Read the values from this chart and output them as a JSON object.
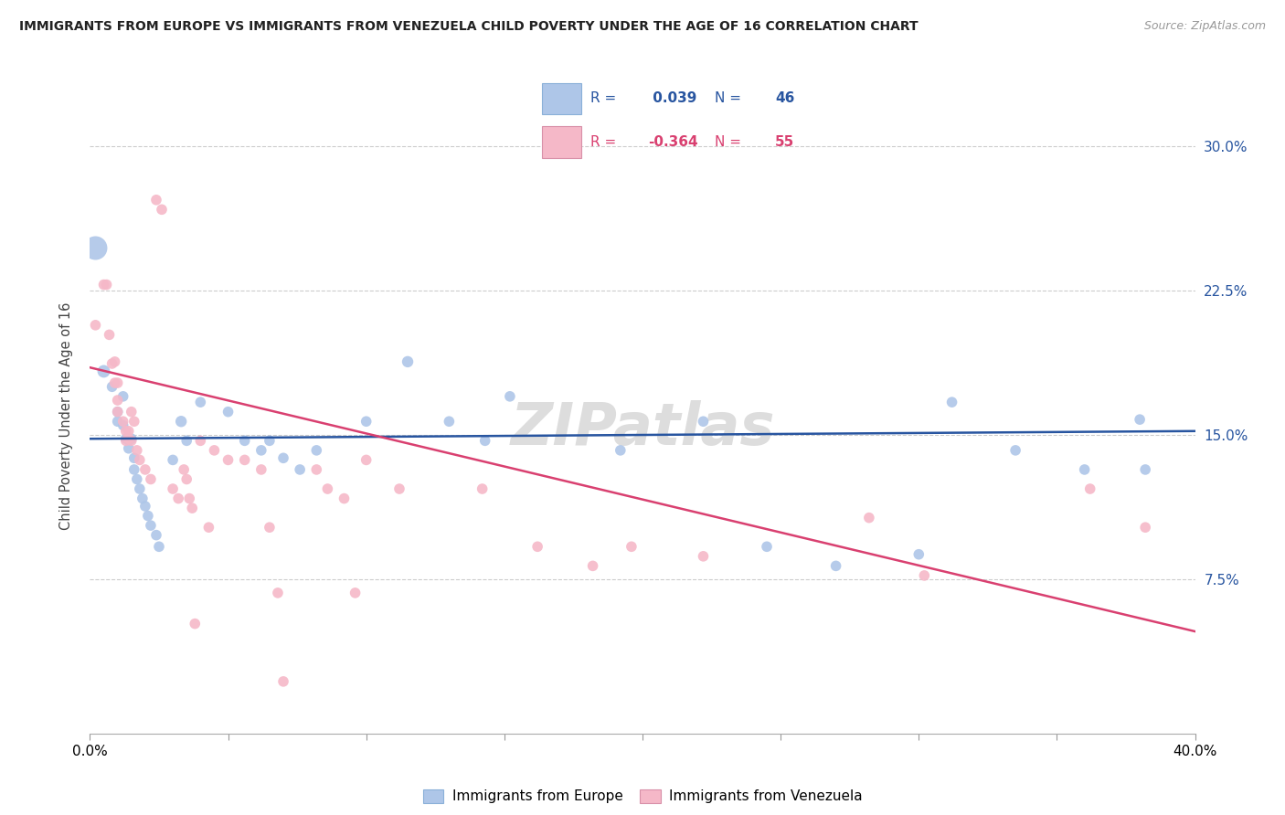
{
  "title": "IMMIGRANTS FROM EUROPE VS IMMIGRANTS FROM VENEZUELA CHILD POVERTY UNDER THE AGE OF 16 CORRELATION CHART",
  "source": "Source: ZipAtlas.com",
  "ylabel": "Child Poverty Under the Age of 16",
  "ytick_vals": [
    0.075,
    0.15,
    0.225,
    0.3
  ],
  "ytick_labels": [
    "7.5%",
    "15.0%",
    "22.5%",
    "30.0%"
  ],
  "xmin": 0.0,
  "xmax": 0.4,
  "ymin": -0.005,
  "ymax": 0.325,
  "europe_R": 0.039,
  "europe_N": 46,
  "venezuela_R": -0.364,
  "venezuela_N": 55,
  "europe_color": "#aec6e8",
  "venezuela_color": "#f5b8c8",
  "europe_line_color": "#2855a0",
  "venezuela_line_color": "#d94070",
  "watermark": "ZIPatlas",
  "europe_line_y0": 0.148,
  "europe_line_y1": 0.152,
  "venezuela_line_y0": 0.185,
  "venezuela_line_y1": 0.048,
  "europe_points": [
    [
      0.002,
      0.247,
      350
    ],
    [
      0.005,
      0.183,
      100
    ],
    [
      0.008,
      0.175,
      70
    ],
    [
      0.01,
      0.162,
      70
    ],
    [
      0.01,
      0.157,
      70
    ],
    [
      0.012,
      0.17,
      70
    ],
    [
      0.012,
      0.155,
      70
    ],
    [
      0.013,
      0.148,
      70
    ],
    [
      0.014,
      0.143,
      70
    ],
    [
      0.015,
      0.148,
      70
    ],
    [
      0.016,
      0.138,
      70
    ],
    [
      0.016,
      0.132,
      70
    ],
    [
      0.017,
      0.127,
      70
    ],
    [
      0.018,
      0.122,
      70
    ],
    [
      0.019,
      0.117,
      70
    ],
    [
      0.02,
      0.113,
      70
    ],
    [
      0.021,
      0.108,
      70
    ],
    [
      0.022,
      0.103,
      70
    ],
    [
      0.024,
      0.098,
      70
    ],
    [
      0.025,
      0.092,
      70
    ],
    [
      0.03,
      0.137,
      70
    ],
    [
      0.033,
      0.157,
      80
    ],
    [
      0.035,
      0.147,
      70
    ],
    [
      0.04,
      0.167,
      70
    ],
    [
      0.05,
      0.162,
      70
    ],
    [
      0.056,
      0.147,
      70
    ],
    [
      0.062,
      0.142,
      70
    ],
    [
      0.065,
      0.147,
      70
    ],
    [
      0.07,
      0.138,
      70
    ],
    [
      0.076,
      0.132,
      70
    ],
    [
      0.082,
      0.142,
      70
    ],
    [
      0.1,
      0.157,
      70
    ],
    [
      0.115,
      0.188,
      80
    ],
    [
      0.13,
      0.157,
      70
    ],
    [
      0.143,
      0.147,
      70
    ],
    [
      0.152,
      0.17,
      70
    ],
    [
      0.192,
      0.142,
      70
    ],
    [
      0.222,
      0.157,
      70
    ],
    [
      0.245,
      0.092,
      70
    ],
    [
      0.27,
      0.082,
      70
    ],
    [
      0.3,
      0.088,
      70
    ],
    [
      0.312,
      0.167,
      70
    ],
    [
      0.335,
      0.142,
      70
    ],
    [
      0.36,
      0.132,
      70
    ],
    [
      0.38,
      0.158,
      70
    ],
    [
      0.382,
      0.132,
      70
    ]
  ],
  "venezuela_points": [
    [
      0.002,
      0.207,
      70
    ],
    [
      0.005,
      0.228,
      70
    ],
    [
      0.006,
      0.228,
      70
    ],
    [
      0.007,
      0.202,
      70
    ],
    [
      0.008,
      0.187,
      70
    ],
    [
      0.009,
      0.188,
      70
    ],
    [
      0.009,
      0.177,
      70
    ],
    [
      0.01,
      0.177,
      70
    ],
    [
      0.01,
      0.168,
      70
    ],
    [
      0.01,
      0.162,
      70
    ],
    [
      0.012,
      0.157,
      70
    ],
    [
      0.013,
      0.152,
      70
    ],
    [
      0.013,
      0.147,
      70
    ],
    [
      0.014,
      0.152,
      70
    ],
    [
      0.014,
      0.148,
      70
    ],
    [
      0.015,
      0.162,
      70
    ],
    [
      0.015,
      0.147,
      70
    ],
    [
      0.016,
      0.157,
      70
    ],
    [
      0.017,
      0.142,
      70
    ],
    [
      0.018,
      0.137,
      70
    ],
    [
      0.02,
      0.132,
      70
    ],
    [
      0.022,
      0.127,
      70
    ],
    [
      0.024,
      0.272,
      70
    ],
    [
      0.026,
      0.267,
      70
    ],
    [
      0.03,
      0.122,
      70
    ],
    [
      0.032,
      0.117,
      70
    ],
    [
      0.034,
      0.132,
      70
    ],
    [
      0.035,
      0.127,
      70
    ],
    [
      0.036,
      0.117,
      70
    ],
    [
      0.037,
      0.112,
      70
    ],
    [
      0.038,
      0.052,
      70
    ],
    [
      0.04,
      0.147,
      70
    ],
    [
      0.043,
      0.102,
      70
    ],
    [
      0.045,
      0.142,
      70
    ],
    [
      0.05,
      0.137,
      70
    ],
    [
      0.056,
      0.137,
      70
    ],
    [
      0.062,
      0.132,
      70
    ],
    [
      0.065,
      0.102,
      70
    ],
    [
      0.068,
      0.068,
      70
    ],
    [
      0.07,
      0.022,
      70
    ],
    [
      0.082,
      0.132,
      70
    ],
    [
      0.086,
      0.122,
      70
    ],
    [
      0.092,
      0.117,
      70
    ],
    [
      0.096,
      0.068,
      70
    ],
    [
      0.1,
      0.137,
      70
    ],
    [
      0.112,
      0.122,
      70
    ],
    [
      0.142,
      0.122,
      70
    ],
    [
      0.162,
      0.092,
      70
    ],
    [
      0.182,
      0.082,
      70
    ],
    [
      0.196,
      0.092,
      70
    ],
    [
      0.222,
      0.087,
      70
    ],
    [
      0.282,
      0.107,
      70
    ],
    [
      0.302,
      0.077,
      70
    ],
    [
      0.362,
      0.122,
      70
    ],
    [
      0.382,
      0.102,
      70
    ]
  ]
}
